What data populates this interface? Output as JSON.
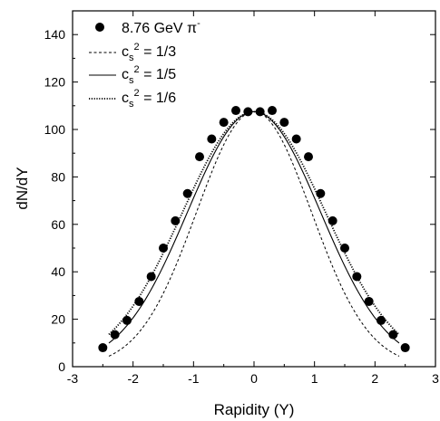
{
  "chart_data": {
    "type": "scatter",
    "title": "",
    "xlabel": "Rapidity (Y)",
    "ylabel": "dN/dY",
    "xlim": [
      -3,
      3
    ],
    "ylim": [
      0,
      150
    ],
    "xticks": [
      -3,
      -2,
      -1,
      0,
      1,
      2,
      3
    ],
    "yticks": [
      0,
      20,
      40,
      60,
      80,
      100,
      120,
      140
    ],
    "grid": false,
    "legend_position": "top-left",
    "points": {
      "name": "8.76 GeV π⁻",
      "name_main": "8.76 GeV π",
      "name_sup": "-",
      "x": [
        -2.5,
        -2.3,
        -2.1,
        -1.9,
        -1.7,
        -1.5,
        -1.3,
        -1.1,
        -0.9,
        -0.7,
        -0.5,
        -0.3,
        -0.1,
        0.1,
        0.3,
        0.5,
        0.7,
        0.9,
        1.1,
        1.3,
        1.5,
        1.7,
        1.9,
        2.1,
        2.3,
        2.5
      ],
      "y": [
        8,
        13.5,
        19.5,
        27.5,
        38,
        50,
        61.5,
        73,
        88.5,
        96,
        103,
        108,
        107.5,
        107.5,
        108,
        103,
        96,
        88.5,
        73,
        61.5,
        50,
        38,
        27.5,
        19.5,
        13.5,
        8
      ]
    },
    "series": [
      {
        "name": "c_s^2 = 1/3",
        "label_main": "c",
        "label_sub": "s",
        "label_sup": "2",
        "label_rest": " = 1/3",
        "style": "dashed",
        "sigma": 0.95,
        "peak": 107.5,
        "range": [
          -2.4,
          2.4
        ]
      },
      {
        "name": "c_s^2 = 1/5",
        "label_main": "c",
        "label_sub": "s",
        "label_sup": "2",
        "label_rest": " = 1/5",
        "style": "solid",
        "sigma": 1.1,
        "peak": 107.5,
        "range": [
          -2.4,
          2.4
        ]
      },
      {
        "name": "c_s^2 = 1/6",
        "label_main": "c",
        "label_sub": "s",
        "label_sup": "2",
        "label_rest": " = 1/6",
        "style": "dotted",
        "sigma": 1.18,
        "peak": 107.5,
        "range": [
          -2.4,
          2.4
        ]
      }
    ]
  }
}
